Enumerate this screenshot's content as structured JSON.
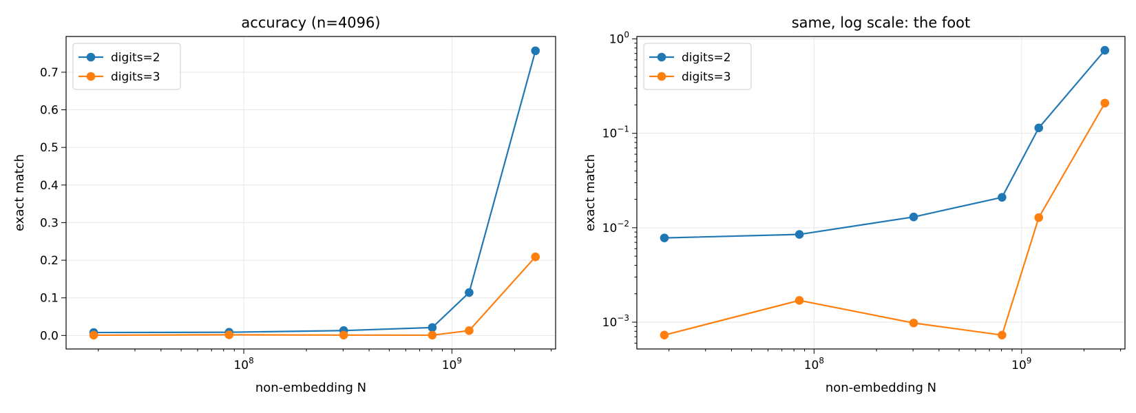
{
  "chart_data": [
    {
      "type": "line",
      "title": "accuracy (n=4096)",
      "xlabel": "non-embedding N",
      "ylabel": "exact match",
      "xscale": "log",
      "yscale": "linear",
      "xlim": [
        14000000,
        3150000000
      ],
      "ylim": [
        -0.036,
        0.795
      ],
      "xticks": [
        {
          "value": 100000000,
          "base": "10",
          "exp": "8"
        },
        {
          "value": 1000000000,
          "base": "10",
          "exp": "9"
        }
      ],
      "yticks": [
        {
          "value": 0.0,
          "label": "0.0"
        },
        {
          "value": 0.1,
          "label": "0.1"
        },
        {
          "value": 0.2,
          "label": "0.2"
        },
        {
          "value": 0.3,
          "label": "0.3"
        },
        {
          "value": 0.4,
          "label": "0.4"
        },
        {
          "value": 0.5,
          "label": "0.5"
        },
        {
          "value": 0.6,
          "label": "0.6"
        },
        {
          "value": 0.7,
          "label": "0.7"
        }
      ],
      "grid": true,
      "legend_position": "upper-left",
      "x": [
        19000000,
        85000000,
        302000000,
        805000000,
        1210000000,
        2520000000
      ],
      "series": [
        {
          "name": "digits=2",
          "color": "#1f77b4",
          "values": [
            0.0078,
            0.0085,
            0.013,
            0.021,
            0.114,
            0.757
          ]
        },
        {
          "name": "digits=3",
          "color": "#ff7f0e",
          "values": [
            0.00073,
            0.0017,
            0.00098,
            0.00073,
            0.0128,
            0.209
          ]
        }
      ]
    },
    {
      "type": "line",
      "title": "same, log scale: the foot",
      "xlabel": "non-embedding N",
      "ylabel": "exact match",
      "xscale": "log",
      "yscale": "log",
      "xlim": [
        14000000,
        3150000000
      ],
      "ylim": [
        0.00052,
        1.06
      ],
      "xticks": [
        {
          "value": 100000000,
          "base": "10",
          "exp": "8"
        },
        {
          "value": 1000000000,
          "base": "10",
          "exp": "9"
        }
      ],
      "yticks": [
        {
          "value": 0.001,
          "base": "10",
          "exp": "−3"
        },
        {
          "value": 0.01,
          "base": "10",
          "exp": "−2"
        },
        {
          "value": 0.1,
          "base": "10",
          "exp": "−1"
        },
        {
          "value": 1,
          "base": "10",
          "exp": "0"
        }
      ],
      "grid": true,
      "legend_position": "upper-left",
      "x": [
        19000000,
        85000000,
        302000000,
        805000000,
        1210000000,
        2520000000
      ],
      "series": [
        {
          "name": "digits=2",
          "color": "#1f77b4",
          "values": [
            0.0078,
            0.0085,
            0.013,
            0.021,
            0.114,
            0.757
          ]
        },
        {
          "name": "digits=3",
          "color": "#ff7f0e",
          "values": [
            0.00073,
            0.0017,
            0.00098,
            0.00073,
            0.0128,
            0.209
          ]
        }
      ]
    }
  ]
}
